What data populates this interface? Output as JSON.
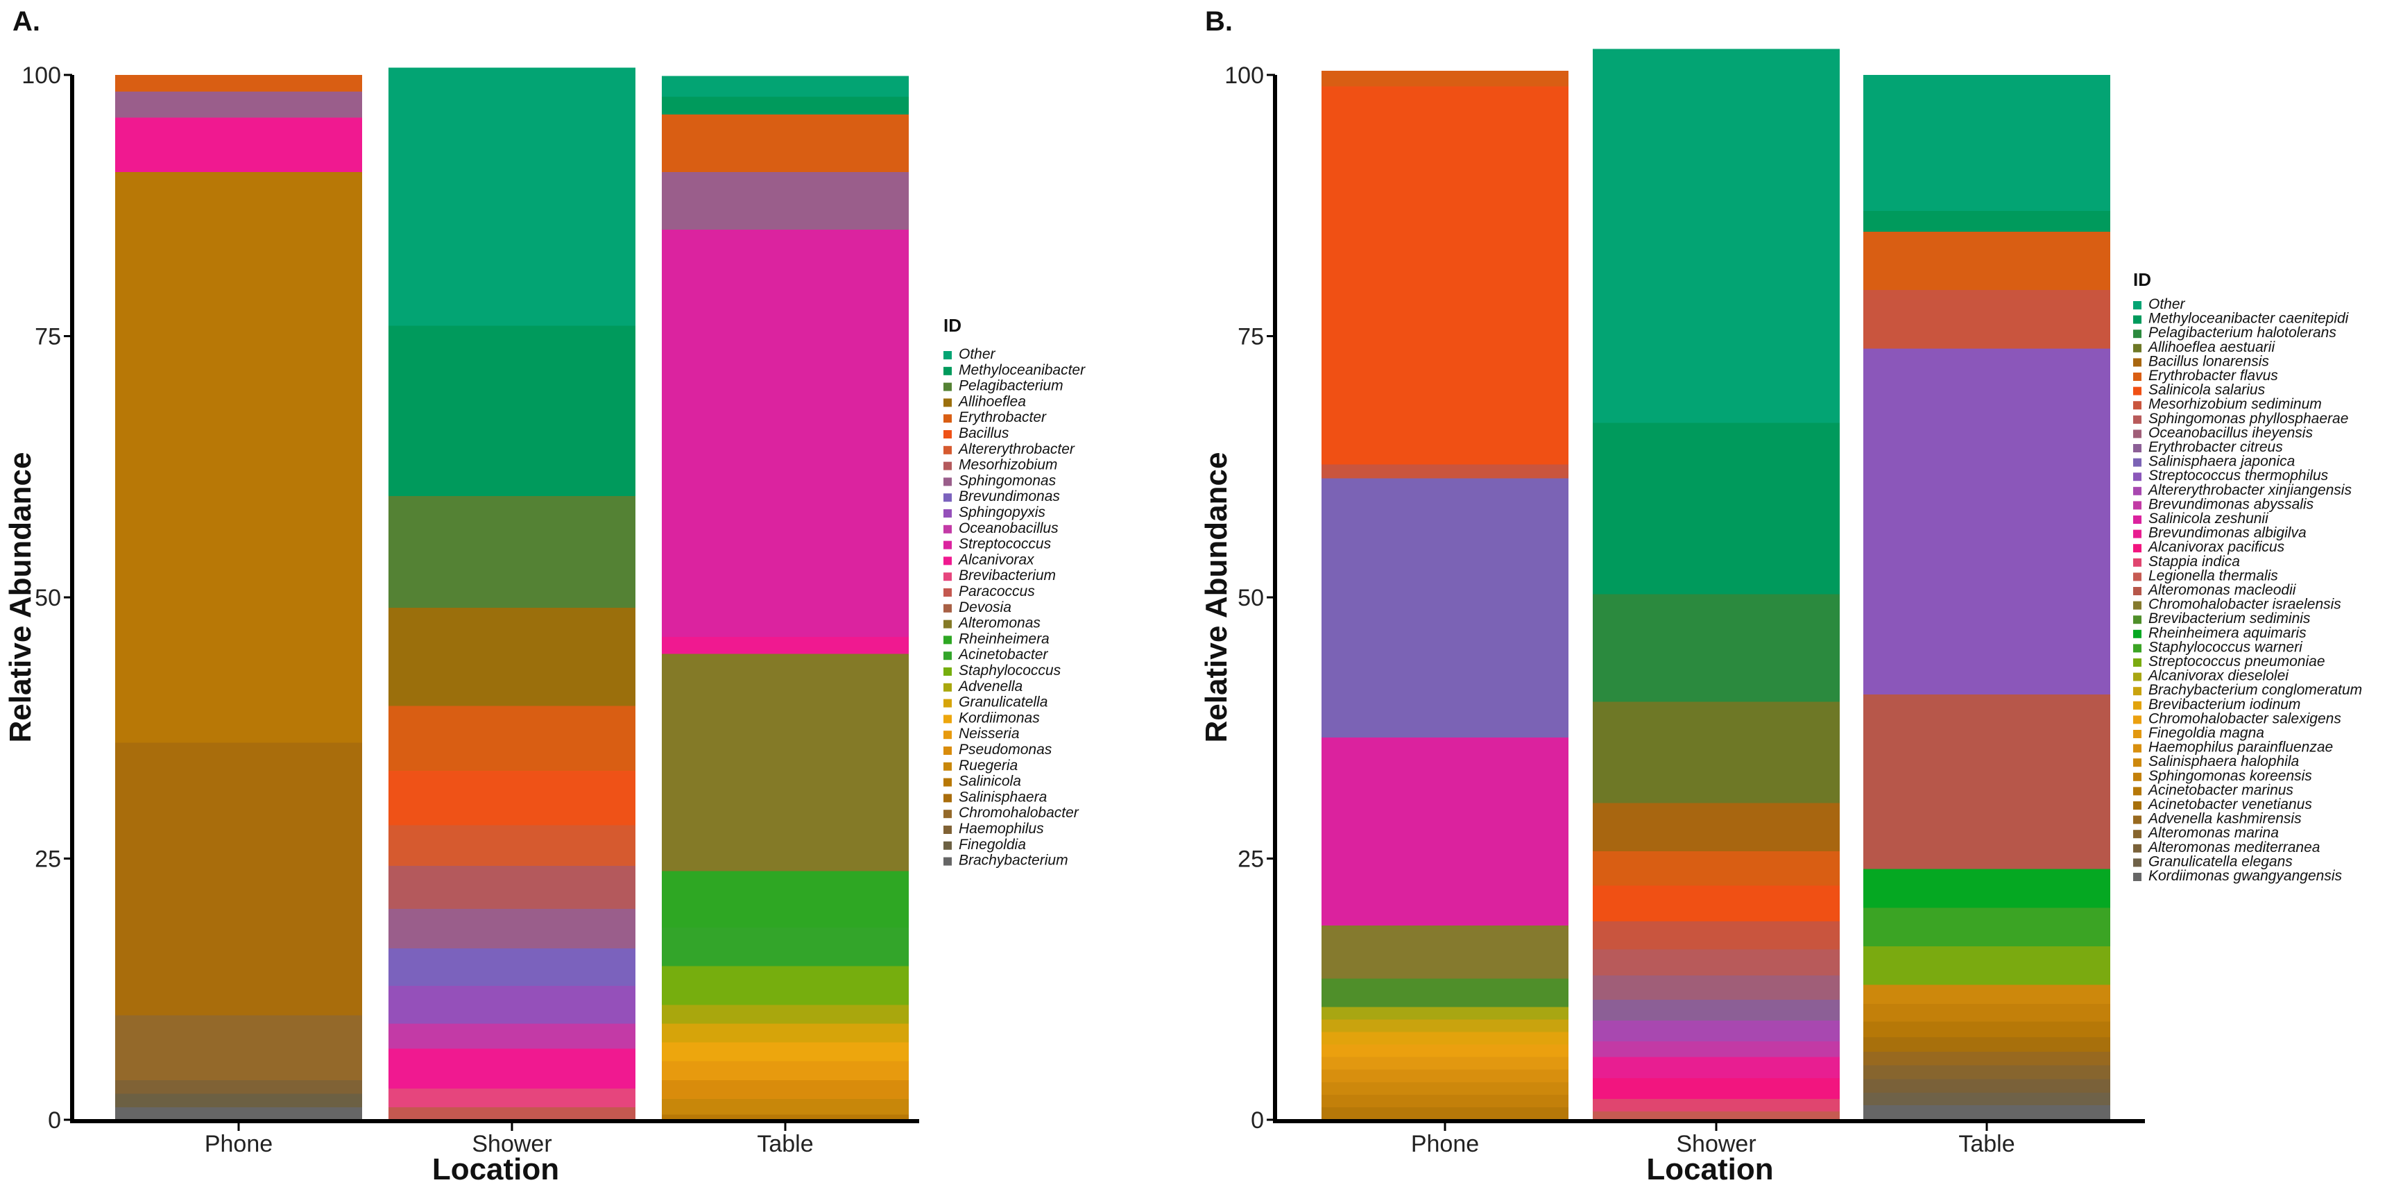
{
  "chart_data": [
    {
      "type": "bar",
      "stacked": true,
      "panel_label": "A.",
      "xlabel": "Location",
      "ylabel": "Relative Abundance",
      "ylim": [
        0,
        100
      ],
      "yticks": [
        "0",
        "25",
        "50",
        "75",
        "100"
      ],
      "legend_title": "ID",
      "categories": [
        "Phone",
        "Shower",
        "Table"
      ],
      "series": [
        {
          "name": "Other",
          "color": "#03a473",
          "values": [
            0,
            24.7,
            2.0
          ]
        },
        {
          "name": "Methyloceanibacter",
          "color": "#009a5c",
          "values": [
            0,
            16.3,
            1.7
          ]
        },
        {
          "name": "Pelagibacterium",
          "color": "#548234",
          "values": [
            0,
            10.7,
            0
          ]
        },
        {
          "name": "Allihoeflea",
          "color": "#9b6f0c",
          "values": [
            0,
            9.4,
            0
          ]
        },
        {
          "name": "Erythrobacter",
          "color": "#d95e13",
          "values": [
            1.6,
            6.2,
            5.5
          ]
        },
        {
          "name": "Bacillus",
          "color": "#ef5217",
          "values": [
            0,
            5.2,
            0
          ]
        },
        {
          "name": "Altererythrobacter",
          "color": "#d65a2f",
          "values": [
            0,
            3.9,
            0
          ]
        },
        {
          "name": "Mesorhizobium",
          "color": "#b4595c",
          "values": [
            0,
            4.1,
            0
          ]
        },
        {
          "name": "Sphingomonas",
          "color": "#9a5e8b",
          "values": [
            2.5,
            3.8,
            5.5
          ]
        },
        {
          "name": "Brevundimonas",
          "color": "#7b62bd",
          "values": [
            0,
            3.6,
            0
          ]
        },
        {
          "name": "Sphingopyxis",
          "color": "#9550ba",
          "values": [
            0,
            3.6,
            0
          ]
        },
        {
          "name": "Oceanobacillus",
          "color": "#c33aa6",
          "values": [
            0,
            2.4,
            0
          ]
        },
        {
          "name": "Streptococcus",
          "color": "#db239f",
          "values": [
            0,
            0,
            39.0
          ]
        },
        {
          "name": "Alcanivorax",
          "color": "#f01990",
          "values": [
            5.2,
            3.8,
            1.6
          ]
        },
        {
          "name": "Brevibacterium",
          "color": "#e6457d",
          "values": [
            0,
            1.8,
            0
          ]
        },
        {
          "name": "Paracoccus",
          "color": "#c45850",
          "values": [
            0,
            1.2,
            0
          ]
        },
        {
          "name": "Devosia",
          "color": "#a86045",
          "values": [
            0,
            0,
            0
          ]
        },
        {
          "name": "Alteromonas",
          "color": "#847a27",
          "values": [
            0,
            0,
            20.8
          ]
        },
        {
          "name": "Rheinheimera",
          "color": "#2ea723",
          "values": [
            0,
            0,
            5.4
          ]
        },
        {
          "name": "Acinetobacter",
          "color": "#33a52a",
          "values": [
            0,
            0,
            3.7
          ]
        },
        {
          "name": "Staphylococcus",
          "color": "#76ae0e",
          "values": [
            0,
            0,
            3.7
          ]
        },
        {
          "name": "Advenella",
          "color": "#a9a70d",
          "values": [
            0,
            0,
            1.8
          ]
        },
        {
          "name": "Granulicatella",
          "color": "#d6a40a",
          "values": [
            0,
            0,
            1.8
          ]
        },
        {
          "name": "Kordiimonas",
          "color": "#eda60d",
          "values": [
            0,
            0,
            1.8
          ]
        },
        {
          "name": "Neisseria",
          "color": "#e79a0e",
          "values": [
            0,
            0,
            1.8
          ]
        },
        {
          "name": "Pseudomonas",
          "color": "#d98c0c",
          "values": [
            0,
            0,
            1.8
          ]
        },
        {
          "name": "Ruegeria",
          "color": "#c8870a",
          "values": [
            0,
            0,
            1.5
          ]
        },
        {
          "name": "Salinicola",
          "color": "#b87806",
          "values": [
            54.6,
            0,
            0.5
          ]
        },
        {
          "name": "Salinisphaera",
          "color": "#a96d0c",
          "values": [
            26.1,
            0,
            0
          ]
        },
        {
          "name": "Chromohalobacter",
          "color": "#94692a",
          "values": [
            6.2,
            0,
            0
          ]
        },
        {
          "name": "Haemophilus",
          "color": "#806235",
          "values": [
            1.3,
            0,
            0
          ]
        },
        {
          "name": "Finegoldia",
          "color": "#6c6043",
          "values": [
            1.3,
            0,
            0
          ]
        },
        {
          "name": "Brachybacterium",
          "color": "#666666",
          "values": [
            1.2,
            0,
            0
          ]
        }
      ]
    },
    {
      "type": "bar",
      "stacked": true,
      "panel_label": "B.",
      "xlabel": "Location",
      "ylabel": "Relative Abundance",
      "ylim": [
        0,
        100
      ],
      "yticks": [
        "0",
        "25",
        "50",
        "75",
        "100"
      ],
      "legend_title": "ID",
      "categories": [
        "Phone",
        "Shower",
        "Table"
      ],
      "series": [
        {
          "name": "Other",
          "color": "#03a473",
          "values": [
            0,
            35.8,
            13.0
          ]
        },
        {
          "name": "Methyloceanibacter caenitepidi",
          "color": "#009a5c",
          "values": [
            0,
            16.4,
            2.0
          ]
        },
        {
          "name": "Pelagibacterium halotolerans",
          "color": "#2b8a3e",
          "values": [
            0,
            10.3,
            0
          ]
        },
        {
          "name": "Allihoeflea aestuarii",
          "color": "#6e7826",
          "values": [
            0,
            9.7,
            0
          ]
        },
        {
          "name": "Bacillus lonarensis",
          "color": "#a86610",
          "values": [
            0,
            4.6,
            0
          ]
        },
        {
          "name": "Erythrobacter flavus",
          "color": "#d95e13",
          "values": [
            1.5,
            3.3,
            5.6
          ]
        },
        {
          "name": "Salinicola salarius",
          "color": "#f05014",
          "values": [
            36.2,
            3.4,
            0
          ]
        },
        {
          "name": "Mesorhizobium sediminum",
          "color": "#c9553e",
          "values": [
            1.3,
            2.7,
            5.6
          ]
        },
        {
          "name": "Sphingomonas phyllosphaerae",
          "color": "#b85a5a",
          "values": [
            0,
            2.5,
            0
          ]
        },
        {
          "name": "Oceanobacillus iheyensis",
          "color": "#a05e78",
          "values": [
            0,
            2.3,
            0
          ]
        },
        {
          "name": "Erythrobacter citreus",
          "color": "#8c5f96",
          "values": [
            0,
            2.0,
            0
          ]
        },
        {
          "name": "Salinisphaera japonica",
          "color": "#7b63b5",
          "values": [
            24.8,
            0,
            0
          ]
        },
        {
          "name": "Streptococcus thermophilus",
          "color": "#8b57ba",
          "values": [
            0,
            0,
            33.1
          ]
        },
        {
          "name": "Altererythrobacter xinjiangensis",
          "color": "#a848b0",
          "values": [
            0,
            2.0,
            0
          ]
        },
        {
          "name": "Brevundimonas abyssalis",
          "color": "#c23aa5",
          "values": [
            0,
            1.5,
            0
          ]
        },
        {
          "name": "Salinicola zeshunii",
          "color": "#db229e",
          "values": [
            18.0,
            0,
            0
          ]
        },
        {
          "name": "Brevundimonas albigilva",
          "color": "#e81e91",
          "values": [
            0,
            2.0,
            0
          ]
        },
        {
          "name": "Alcanivorax pacificus",
          "color": "#f2157f",
          "values": [
            0,
            2.0,
            0
          ]
        },
        {
          "name": "Stappia indica",
          "color": "#e0456f",
          "values": [
            0,
            1.2,
            0
          ]
        },
        {
          "name": "Legionella thermalis",
          "color": "#c65a52",
          "values": [
            0,
            0.8,
            0
          ]
        },
        {
          "name": "Alteromonas macleodii",
          "color": "#b7574a",
          "values": [
            0,
            0,
            16.7
          ]
        },
        {
          "name": "Chromohalobacter israelensis",
          "color": "#857a2e",
          "values": [
            5.1,
            0,
            0
          ]
        },
        {
          "name": "Brevibacterium sediminis",
          "color": "#4f8f2a",
          "values": [
            2.7,
            0,
            0
          ]
        },
        {
          "name": "Rheinheimera aquimaris",
          "color": "#05a822",
          "values": [
            0,
            0,
            3.7
          ]
        },
        {
          "name": "Staphylococcus warneri",
          "color": "#3ba424",
          "values": [
            0,
            0,
            3.7
          ]
        },
        {
          "name": "Streptococcus pneumoniae",
          "color": "#7aaa10",
          "values": [
            0,
            0,
            3.7
          ]
        },
        {
          "name": "Alcanivorax dieselolei",
          "color": "#a8a612",
          "values": [
            1.2,
            0,
            0
          ]
        },
        {
          "name": "Brachybacterium conglomeratum",
          "color": "#c9a30e",
          "values": [
            1.2,
            0,
            0
          ]
        },
        {
          "name": "Brevibacterium iodinum",
          "color": "#e2a30c",
          "values": [
            1.2,
            0,
            0
          ]
        },
        {
          "name": "Chromohalobacter salexigens",
          "color": "#eba00f",
          "values": [
            1.2,
            0,
            0
          ]
        },
        {
          "name": "Finegoldia magna",
          "color": "#e29810",
          "values": [
            1.2,
            0,
            0
          ]
        },
        {
          "name": "Haemophilus parainfluenzae",
          "color": "#d88f0e",
          "values": [
            1.2,
            0,
            0
          ]
        },
        {
          "name": "Salinisphaera halophila",
          "color": "#cd880c",
          "values": [
            1.2,
            0,
            1.8
          ]
        },
        {
          "name": "Sphingomonas koreensis",
          "color": "#c3800a",
          "values": [
            1.2,
            0,
            1.7
          ]
        },
        {
          "name": "Acinetobacter marinus",
          "color": "#b67808",
          "values": [
            1.2,
            0,
            1.5
          ]
        },
        {
          "name": "Acinetobacter venetianus",
          "color": "#a8700c",
          "values": [
            0,
            0,
            1.4
          ]
        },
        {
          "name": "Advenella kashmirensis",
          "color": "#98691f",
          "values": [
            0,
            0,
            1.3
          ]
        },
        {
          "name": "Alteromonas marina",
          "color": "#87652e",
          "values": [
            0,
            0,
            1.3
          ]
        },
        {
          "name": "Alteromonas mediterranea",
          "color": "#7a6139",
          "values": [
            0,
            0,
            1.3
          ]
        },
        {
          "name": "Granulicatella elegans",
          "color": "#6f6248",
          "values": [
            0,
            0,
            1.2
          ]
        },
        {
          "name": "Kordiimonas gwangyangensis",
          "color": "#666666",
          "values": [
            0,
            0,
            1.4
          ]
        }
      ]
    }
  ]
}
